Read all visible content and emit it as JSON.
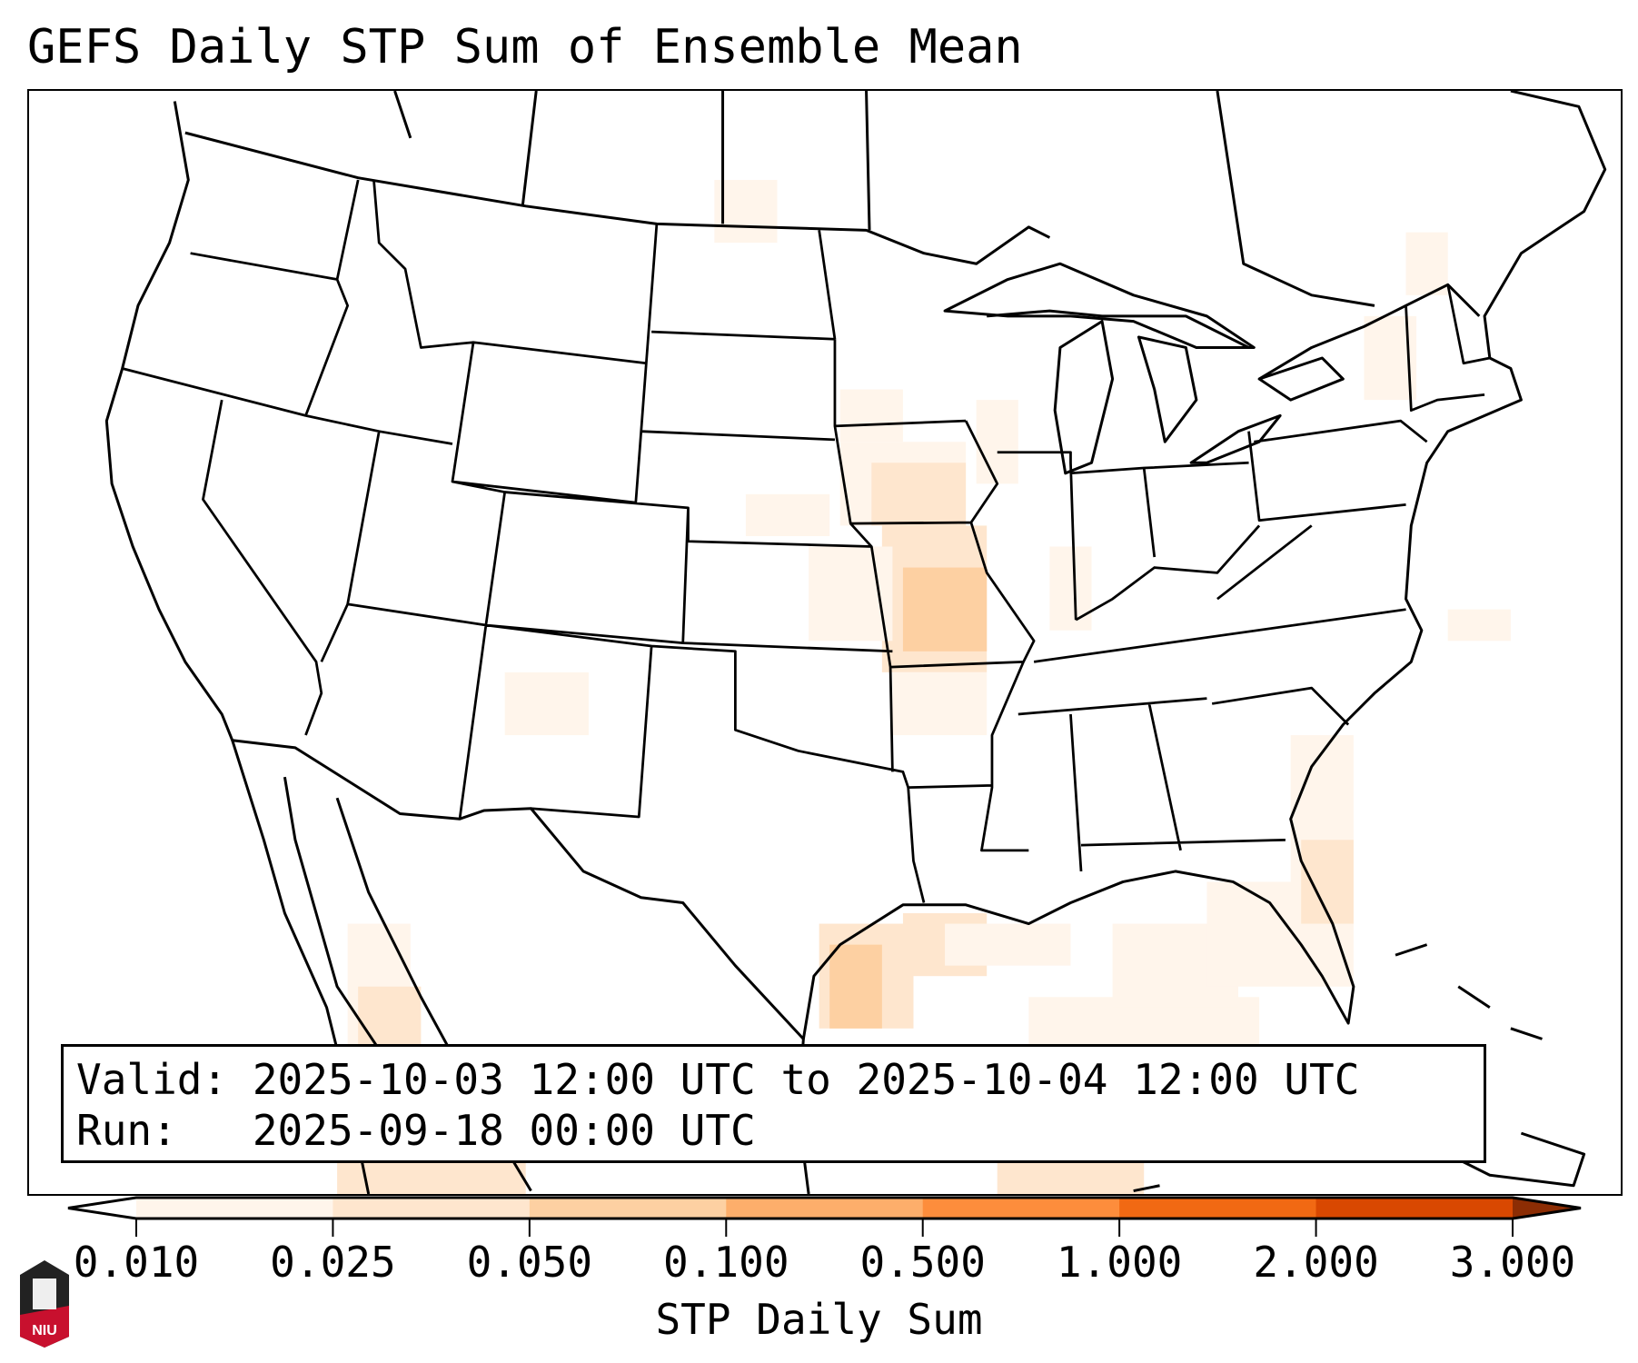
{
  "title": "GEFS Daily STP Sum of Ensemble Mean",
  "legend": {
    "valid_line": "Valid: 2025-10-03 12:00 UTC to 2025-10-04 12:00 UTC",
    "run_line": "Run:   2025-09-18 00:00 UTC"
  },
  "logo_text": "NIU",
  "chart_data": {
    "type": "heatmap",
    "title": "GEFS Daily STP Sum of Ensemble Mean",
    "colorbar": {
      "label": "STP Daily Sum",
      "ticks": [
        "0.010",
        "0.025",
        "0.050",
        "0.100",
        "0.500",
        "1.000",
        "2.000",
        "3.000"
      ],
      "colors": [
        "#fff5eb",
        "#fee6ce",
        "#fdd0a2",
        "#fdae6b",
        "#fd8d3c",
        "#f16913",
        "#d94801"
      ],
      "under_color": "#ffffff",
      "over_color": "#8c2d04",
      "extend": "both"
    },
    "regions_of_note": [
      {
        "area": "Upper Texas / Louisiana Gulf coast",
        "level": "0.025-0.050"
      },
      {
        "area": "Missouri / Iowa / eastern Kansas",
        "level": "0.010-0.050"
      },
      {
        "area": "Southeast Atlantic coast / Florida",
        "level": "0.010-0.025"
      },
      {
        "area": "Gulf of Mexico",
        "level": "0.010-0.025"
      }
    ]
  }
}
